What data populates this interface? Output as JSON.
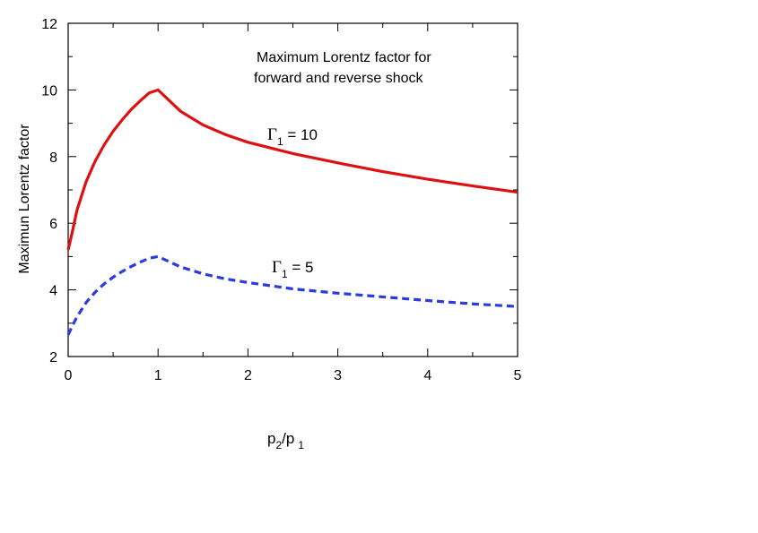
{
  "chart_data": {
    "type": "line",
    "title": "Maximum Lorentz  factor for forward and reverse shock",
    "title_lines": [
      "Maximum Lorentz  factor for",
      "forward and reverse shock"
    ],
    "xlabel": {
      "p": "p",
      "sub2": "2",
      "slash": "/p",
      "sub1": "1"
    },
    "ylabel": "Maximun Lorentz factor",
    "xlim": [
      0,
      5
    ],
    "ylim": [
      2,
      12
    ],
    "x_ticks": [
      0,
      1,
      2,
      3,
      4,
      5
    ],
    "y_ticks": [
      2,
      4,
      6,
      8,
      10,
      12
    ],
    "x_tick_labels": [
      "0",
      "1",
      "2",
      "3",
      "4",
      "5"
    ],
    "y_tick_labels": [
      "2",
      "4",
      "6",
      "8",
      "10",
      "12"
    ],
    "x_minor_step": 0.5,
    "y_minor_step": 1,
    "grid": false,
    "series": [
      {
        "name": "Γ1 = 10",
        "label": {
          "greek": "Γ",
          "sub": "1",
          "rest": " = 10"
        },
        "color": "#dd1111",
        "style": "solid",
        "peak": 10,
        "x": [
          0,
          0.05,
          0.1,
          0.2,
          0.3,
          0.4,
          0.5,
          0.6,
          0.7,
          0.8,
          0.9,
          1.0,
          1.25,
          1.5,
          1.75,
          2.0,
          2.5,
          3.0,
          3.5,
          4.0,
          4.5,
          5.0
        ],
        "y": [
          5.2,
          5.79,
          6.41,
          7.25,
          7.86,
          8.35,
          8.76,
          9.1,
          9.41,
          9.67,
          9.91,
          10.0,
          9.36,
          8.95,
          8.66,
          8.43,
          8.09,
          7.81,
          7.55,
          7.32,
          7.12,
          6.93
        ]
      },
      {
        "name": "Γ1 = 5",
        "label": {
          "greek": "Γ",
          "sub": "1",
          "rest": " = 5"
        },
        "color": "#2b3bdf",
        "style": "dashed",
        "peak": 5,
        "x": [
          0,
          0.05,
          0.1,
          0.2,
          0.3,
          0.4,
          0.5,
          0.6,
          0.7,
          0.8,
          0.9,
          1.0,
          1.25,
          1.5,
          1.75,
          2.0,
          2.5,
          3.0,
          3.5,
          4.0,
          4.5,
          5.0
        ],
        "y": [
          2.65,
          2.94,
          3.2,
          3.62,
          3.93,
          4.18,
          4.38,
          4.55,
          4.7,
          4.83,
          4.95,
          5.0,
          4.69,
          4.48,
          4.33,
          4.22,
          4.03,
          3.9,
          3.79,
          3.68,
          3.58,
          3.5
        ]
      }
    ]
  }
}
